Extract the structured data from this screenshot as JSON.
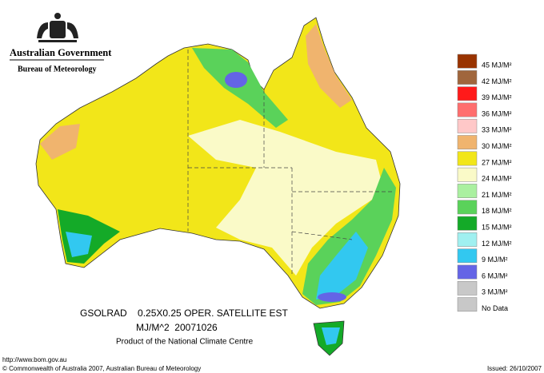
{
  "header": {
    "government": "Australian Government",
    "bureau": "Bureau of Meteorology"
  },
  "legend": {
    "items": [
      {
        "label": "45 MJ/M²",
        "color": "#993300"
      },
      {
        "label": "42 MJ/M²",
        "color": "#a0663c"
      },
      {
        "label": "39 MJ/M²",
        "color": "#ff1a1a"
      },
      {
        "label": "36 MJ/M²",
        "color": "#ff6e6e"
      },
      {
        "label": "33 MJ/M²",
        "color": "#ffc8c8"
      },
      {
        "label": "30 MJ/M²",
        "color": "#f0b46e"
      },
      {
        "label": "27 MJ/M²",
        "color": "#f2e619"
      },
      {
        "label": "24 MJ/M²",
        "color": "#fafac8"
      },
      {
        "label": "21 MJ/M²",
        "color": "#aaf0a0"
      },
      {
        "label": "18 MJ/M²",
        "color": "#5ad25a"
      },
      {
        "label": "15 MJ/M²",
        "color": "#14aa28"
      },
      {
        "label": "12 MJ/M²",
        "color": "#a0f0f0"
      },
      {
        "label": "9 MJ/M²",
        "color": "#32c8f0"
      },
      {
        "label": "6 MJ/M²",
        "color": "#6464e6"
      },
      {
        "label": "3 MJ/M²",
        "color": "#c8c8c8"
      },
      {
        "label": "No Data",
        "color": "#c8c8c8"
      }
    ]
  },
  "caption": {
    "line1": "GSOLRAD    0.25X0.25 OPER. SATELLITE EST",
    "line2": "MJ/M^2  20071026",
    "line3": "Product of the National Climate Centre"
  },
  "footer": {
    "url": "http://www.bom.gov.au",
    "copyright": "© Commonwealth of Australia 2007, Australian Bureau of Meteorology",
    "issued": "Issued: 26/10/2007"
  }
}
